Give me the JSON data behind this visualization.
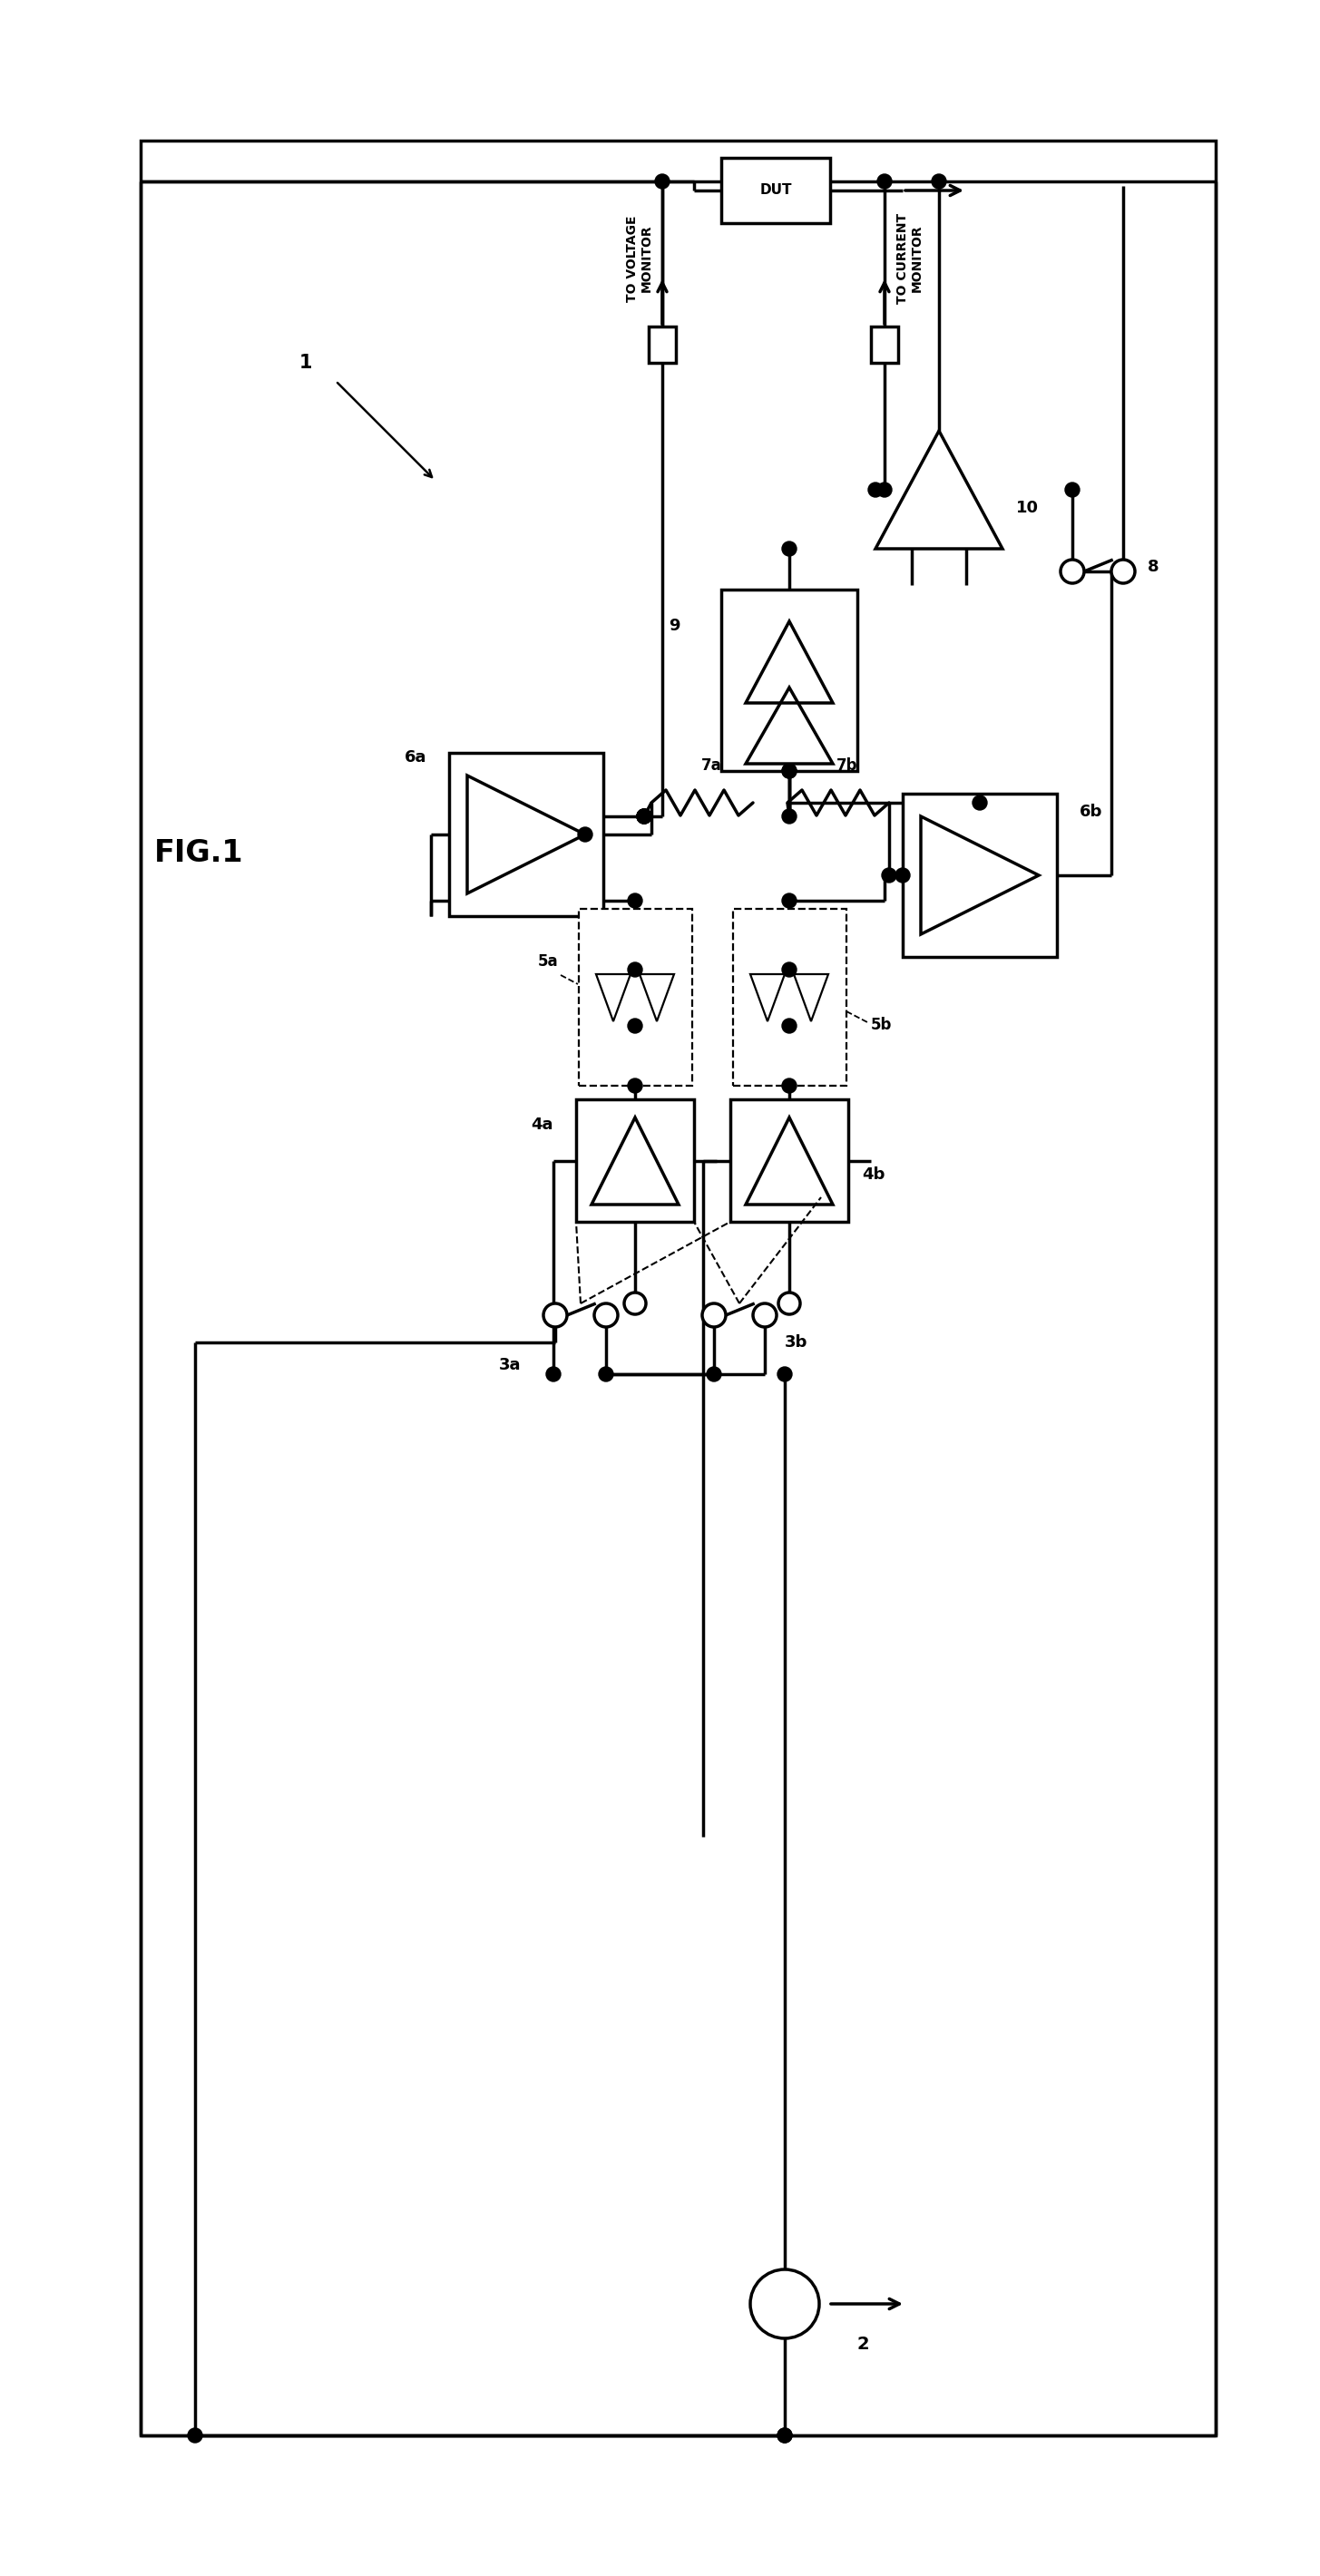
{
  "fig_label": "FIG.1",
  "label_1": "1",
  "label_2": "2",
  "label_3a": "3a",
  "label_3b": "3b",
  "label_4a": "4a",
  "label_4b": "4b",
  "label_5a": "5a",
  "label_5b": "5b",
  "label_6a": "6a",
  "label_6b": "6b",
  "label_7a": "7a",
  "label_7b": "7b",
  "label_8": "8",
  "label_9": "9",
  "label_10": "10",
  "label_dut": "DUT",
  "label_voltage": "TO VOLTAGE\nMONITOR",
  "label_current": "TO CURRENT\nMONITOR",
  "bg_color": "#ffffff",
  "line_color": "#000000",
  "lw": 2.5,
  "lw_thin": 1.6
}
